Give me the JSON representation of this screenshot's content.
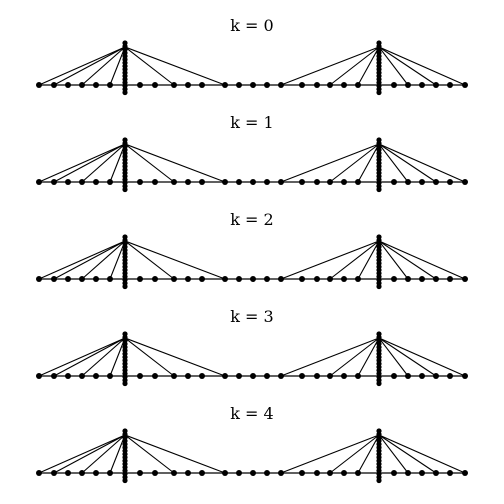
{
  "figure": {
    "panels": [
      {
        "label": "k = 0"
      },
      {
        "label": "k = 1"
      },
      {
        "label": "k = 2"
      },
      {
        "label": "k = 3"
      },
      {
        "label": "k = 4"
      }
    ],
    "colors": {
      "ink": "#000000",
      "background": "#ffffff"
    }
  }
}
